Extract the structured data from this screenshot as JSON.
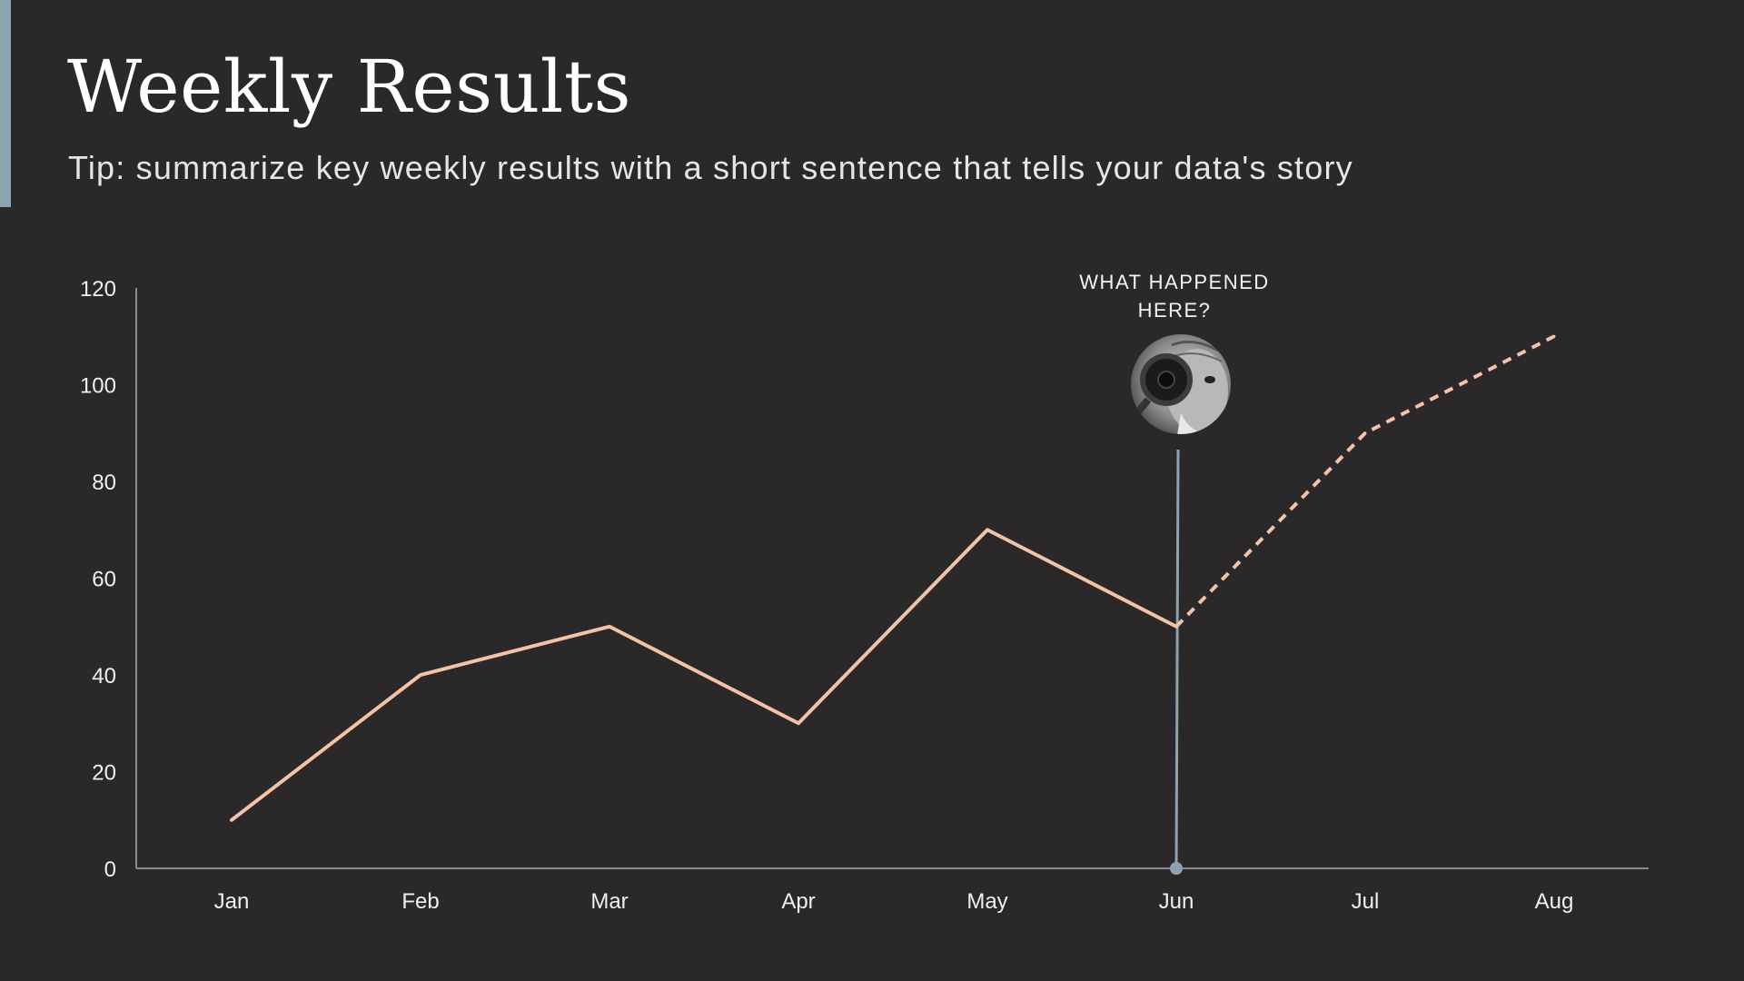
{
  "slide": {
    "title": "Weekly Results",
    "subtitle": "Tip: summarize key weekly results with a short sentence that tells your data's story"
  },
  "colors": {
    "background": "#2a2829",
    "line": "#f4c2a4",
    "accent": "#8ea3b2",
    "axis": "#8a8a8a"
  },
  "chart_data": {
    "type": "line",
    "categories": [
      "Jan",
      "Feb",
      "Mar",
      "Apr",
      "May",
      "Jun",
      "Jul",
      "Aug"
    ],
    "series": [
      {
        "values": [
          10,
          40,
          50,
          30,
          70,
          50,
          90,
          110
        ],
        "solid_through": "Jun",
        "dashed_from": "Jun"
      }
    ],
    "ylim": [
      0,
      120
    ],
    "yticks": [
      0,
      20,
      40,
      60,
      80,
      100,
      120
    ],
    "grid": false,
    "legend": "none",
    "annotation": {
      "category": "Jun",
      "text_lines": [
        "WHAT HAPPENED",
        "HERE?"
      ],
      "image": "man-with-magnifying-glass-photo"
    }
  }
}
